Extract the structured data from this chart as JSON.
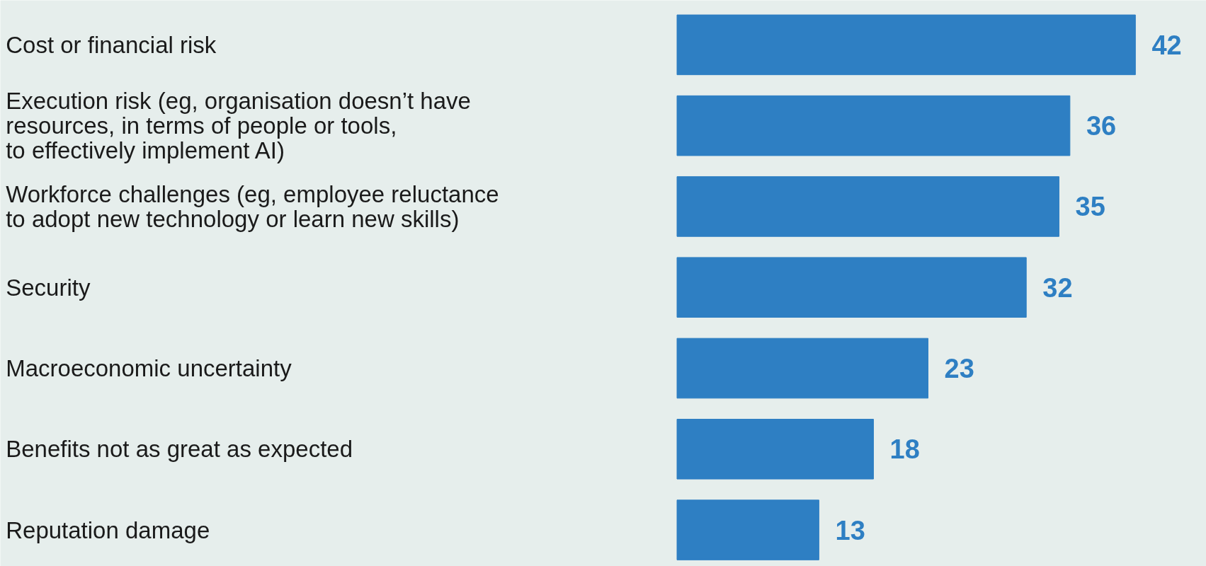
{
  "chart_data": {
    "type": "bar",
    "orientation": "horizontal",
    "categories": [
      "Cost or financial risk",
      "Execution risk (eg, organisation doesn’t have\nresources, in terms of people or tools,\nto effectively implement AI)",
      "Workforce challenges (eg, employee reluctance\nto adopt new technology or learn new skills)",
      "Security",
      "Macroeconomic uncertainty",
      "Benefits not as great as expected",
      "Reputation damage"
    ],
    "values": [
      42,
      36,
      35,
      32,
      23,
      18,
      13
    ],
    "color": "#2e7fc3",
    "data_labels": true
  }
}
